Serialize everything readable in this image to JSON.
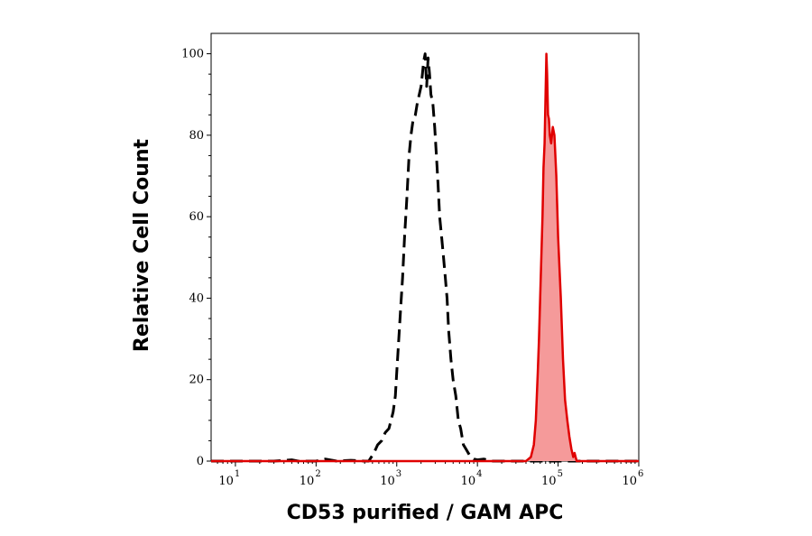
{
  "chart_data": {
    "type": "area",
    "xlabel": "CD53 purified / GAM APC",
    "ylabel": "Relative Cell Count",
    "xscale": "log",
    "xlim": [
      5,
      1000000
    ],
    "ylim": [
      0,
      105
    ],
    "y_ticks": [
      "0",
      "20",
      "40",
      "60",
      "80",
      "100"
    ],
    "x_ticks": [
      {
        "base": "10",
        "exp": "1"
      },
      {
        "base": "10",
        "exp": "2"
      },
      {
        "base": "10",
        "exp": "3"
      },
      {
        "base": "10",
        "exp": "4"
      },
      {
        "base": "10",
        "exp": "5"
      },
      {
        "base": "10",
        "exp": "6"
      }
    ],
    "grid": false,
    "series": [
      {
        "style": "dashed",
        "color": "#000000",
        "fill": "none",
        "points": [
          [
            5,
            0
          ],
          [
            30,
            0
          ],
          [
            50,
            0.3
          ],
          [
            60,
            0
          ],
          [
            80,
            0
          ],
          [
            100,
            0
          ],
          [
            130,
            0.5
          ],
          [
            180,
            0
          ],
          [
            270,
            0.2
          ],
          [
            400,
            0
          ],
          [
            450,
            0
          ],
          [
            520,
            2
          ],
          [
            580,
            4
          ],
          [
            650,
            5
          ],
          [
            720,
            7
          ],
          [
            800,
            8
          ],
          [
            900,
            12
          ],
          [
            960,
            16
          ],
          [
            1000,
            22
          ],
          [
            1060,
            30
          ],
          [
            1120,
            38
          ],
          [
            1180,
            45
          ],
          [
            1250,
            55
          ],
          [
            1330,
            64
          ],
          [
            1420,
            75
          ],
          [
            1500,
            80
          ],
          [
            1600,
            84
          ],
          [
            1700,
            85
          ],
          [
            1800,
            88
          ],
          [
            1900,
            90
          ],
          [
            2000,
            92
          ],
          [
            2080,
            95
          ],
          [
            2150,
            98
          ],
          [
            2250,
            100
          ],
          [
            2350,
            92
          ],
          [
            2450,
            99
          ],
          [
            2550,
            95
          ],
          [
            2650,
            90
          ],
          [
            2800,
            88
          ],
          [
            2950,
            82
          ],
          [
            3100,
            75
          ],
          [
            3250,
            68
          ],
          [
            3400,
            60
          ],
          [
            3600,
            55
          ],
          [
            3800,
            50
          ],
          [
            4000,
            45
          ],
          [
            4200,
            40
          ],
          [
            4400,
            32
          ],
          [
            4700,
            25
          ],
          [
            5000,
            20
          ],
          [
            5400,
            16
          ],
          [
            5800,
            10
          ],
          [
            6200,
            8
          ],
          [
            6700,
            4
          ],
          [
            7200,
            3
          ],
          [
            7700,
            2
          ],
          [
            8300,
            1
          ],
          [
            9000,
            0.5
          ],
          [
            10000,
            0.3
          ],
          [
            12000,
            0.5
          ],
          [
            15000,
            0
          ],
          [
            20000,
            0
          ],
          [
            1000000,
            0
          ]
        ]
      },
      {
        "style": "solid",
        "color": "#e00000",
        "fill": "#f59a9a",
        "points": [
          [
            5,
            0
          ],
          [
            30000,
            0
          ],
          [
            40000,
            0
          ],
          [
            46000,
            1
          ],
          [
            50000,
            4
          ],
          [
            53000,
            10
          ],
          [
            56000,
            22
          ],
          [
            58000,
            30
          ],
          [
            60000,
            40
          ],
          [
            62000,
            50
          ],
          [
            64000,
            60
          ],
          [
            66000,
            72
          ],
          [
            68000,
            78
          ],
          [
            70000,
            90
          ],
          [
            71500,
            100
          ],
          [
            73000,
            95
          ],
          [
            75000,
            85
          ],
          [
            77000,
            84
          ],
          [
            79000,
            80
          ],
          [
            82000,
            78
          ],
          [
            86000,
            82
          ],
          [
            90000,
            80
          ],
          [
            95000,
            70
          ],
          [
            100000,
            55
          ],
          [
            108000,
            40
          ],
          [
            115000,
            25
          ],
          [
            122000,
            15
          ],
          [
            130000,
            10
          ],
          [
            138000,
            6
          ],
          [
            146000,
            3
          ],
          [
            154000,
            1
          ],
          [
            160000,
            2
          ],
          [
            170000,
            0
          ],
          [
            200000,
            0
          ],
          [
            1000000,
            0
          ]
        ]
      }
    ]
  }
}
